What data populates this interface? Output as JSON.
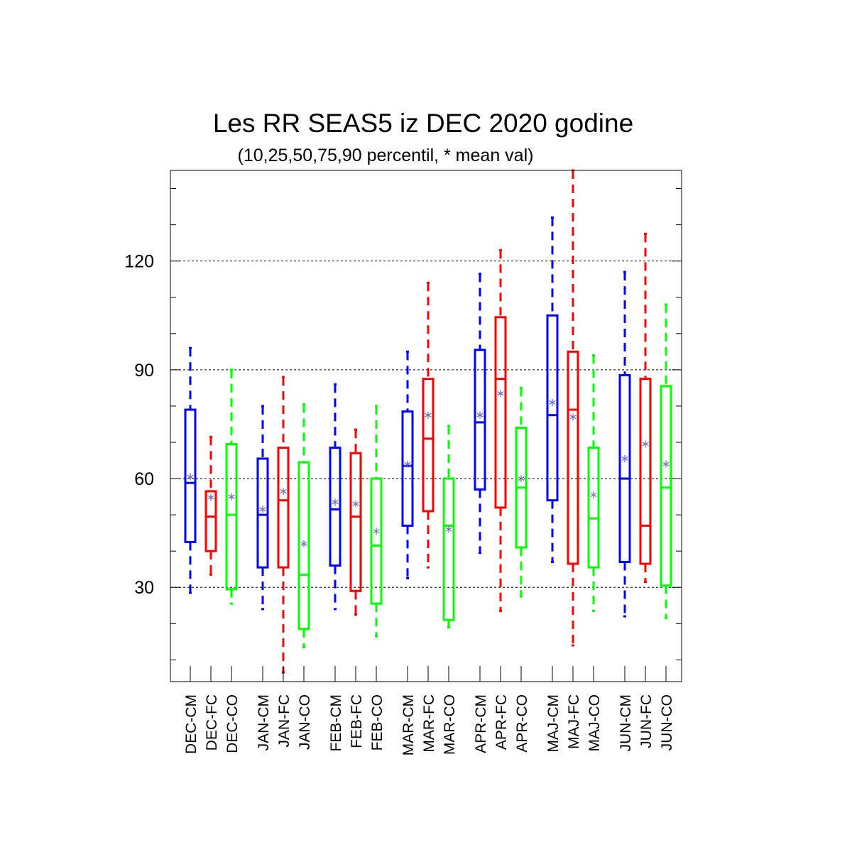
{
  "chart_data": {
    "type": "box",
    "title": "Les RR SEAS5 iz DEC 2020 godine",
    "subtitle": "(10,25,50,75,90 percentil, * mean val)",
    "xlabel": "",
    "ylabel": "",
    "ylim": [
      4,
      145
    ],
    "yticks": [
      30,
      60,
      90,
      120
    ],
    "grid": true,
    "mean_marker": "*",
    "colors": {
      "CM": "#0000ff",
      "FC": "#ff0000",
      "CO": "#00ff00",
      "mean": "#6a6ab8"
    },
    "categories": [
      "DEC-CM",
      "DEC-FC",
      "DEC-CO",
      "JAN-CM",
      "JAN-FC",
      "JAN-CO",
      "FEB-CM",
      "FEB-FC",
      "FEB-CO",
      "MAR-CM",
      "MAR-FC",
      "MAR-CO",
      "APR-CM",
      "APR-FC",
      "APR-CO",
      "MAJ-CM",
      "MAJ-FC",
      "MAJ-CO",
      "JUN-CM",
      "JUN-FC",
      "JUN-CO"
    ],
    "boxes": [
      {
        "label": "DEC-CM",
        "group": "CM",
        "p10": 28.5,
        "p25": 42.5,
        "p50": 58.8,
        "p75": 79.0,
        "p90": 96.0,
        "mean": 60.5
      },
      {
        "label": "DEC-FC",
        "group": "FC",
        "p10": 33.5,
        "p25": 40.0,
        "p50": 49.5,
        "p75": 56.5,
        "p90": 71.5,
        "mean": 54.8
      },
      {
        "label": "DEC-CO",
        "group": "CO",
        "p10": 25.5,
        "p25": 29.5,
        "p50": 50.0,
        "p75": 69.5,
        "p90": 90.0,
        "mean": 55.0
      },
      {
        "label": "JAN-CM",
        "group": "CM",
        "p10": 24.0,
        "p25": 35.5,
        "p50": 50.0,
        "p75": 65.5,
        "p90": 80.0,
        "mean": 51.5
      },
      {
        "label": "JAN-FC",
        "group": "FC",
        "p10": 6.5,
        "p25": 35.5,
        "p50": 54.0,
        "p75": 68.5,
        "p90": 88.0,
        "mean": 56.5
      },
      {
        "label": "JAN-CO",
        "group": "CO",
        "p10": 13.5,
        "p25": 18.5,
        "p50": 33.5,
        "p75": 64.5,
        "p90": 80.5,
        "mean": 42.0
      },
      {
        "label": "FEB-CM",
        "group": "CM",
        "p10": 24.0,
        "p25": 36.0,
        "p50": 51.5,
        "p75": 68.5,
        "p90": 86.0,
        "mean": 53.5
      },
      {
        "label": "FEB-FC",
        "group": "FC",
        "p10": 22.5,
        "p25": 29.0,
        "p50": 49.5,
        "p75": 67.0,
        "p90": 73.5,
        "mean": 53.0
      },
      {
        "label": "FEB-CO",
        "group": "CO",
        "p10": 16.5,
        "p25": 25.5,
        "p50": 41.5,
        "p75": 60.0,
        "p90": 80.0,
        "mean": 45.5
      },
      {
        "label": "MAR-CM",
        "group": "CM",
        "p10": 32.5,
        "p25": 47.0,
        "p50": 63.5,
        "p75": 78.5,
        "p90": 95.0,
        "mean": 64.0
      },
      {
        "label": "MAR-FC",
        "group": "FC",
        "p10": 35.5,
        "p25": 51.0,
        "p50": 71.0,
        "p75": 87.5,
        "p90": 114.0,
        "mean": 77.5
      },
      {
        "label": "MAR-CO",
        "group": "CO",
        "p10": 19.0,
        "p25": 21.0,
        "p50": 47.0,
        "p75": 60.0,
        "p90": 74.5,
        "mean": 46.0
      },
      {
        "label": "APR-CM",
        "group": "CM",
        "p10": 39.5,
        "p25": 57.0,
        "p50": 75.5,
        "p75": 95.5,
        "p90": 116.5,
        "mean": 77.5
      },
      {
        "label": "APR-FC",
        "group": "FC",
        "p10": 23.5,
        "p25": 52.0,
        "p50": 87.5,
        "p75": 104.5,
        "p90": 123.0,
        "mean": 83.5
      },
      {
        "label": "APR-CO",
        "group": "CO",
        "p10": 27.5,
        "p25": 41.0,
        "p50": 57.5,
        "p75": 74.0,
        "p90": 85.0,
        "mean": 60.0
      },
      {
        "label": "MAJ-CM",
        "group": "CM",
        "p10": 37.0,
        "p25": 54.0,
        "p50": 77.5,
        "p75": 105.0,
        "p90": 132.0,
        "mean": 81.0
      },
      {
        "label": "MAJ-FC",
        "group": "FC",
        "p10": 14.0,
        "p25": 36.5,
        "p50": 79.0,
        "p75": 95.0,
        "p90": 145.0,
        "mean": 77.0
      },
      {
        "label": "MAJ-CO",
        "group": "CO",
        "p10": 23.5,
        "p25": 35.5,
        "p50": 49.0,
        "p75": 68.5,
        "p90": 94.0,
        "mean": 55.5
      },
      {
        "label": "JUN-CM",
        "group": "CM",
        "p10": 22.0,
        "p25": 37.0,
        "p50": 60.0,
        "p75": 88.5,
        "p90": 117.0,
        "mean": 65.5
      },
      {
        "label": "JUN-FC",
        "group": "FC",
        "p10": 31.5,
        "p25": 36.5,
        "p50": 47.0,
        "p75": 87.5,
        "p90": 127.5,
        "mean": 69.5
      },
      {
        "label": "JUN-CO",
        "group": "CO",
        "p10": 21.5,
        "p25": 30.5,
        "p50": 57.5,
        "p75": 85.5,
        "p90": 108.0,
        "mean": 64.0
      }
    ]
  }
}
